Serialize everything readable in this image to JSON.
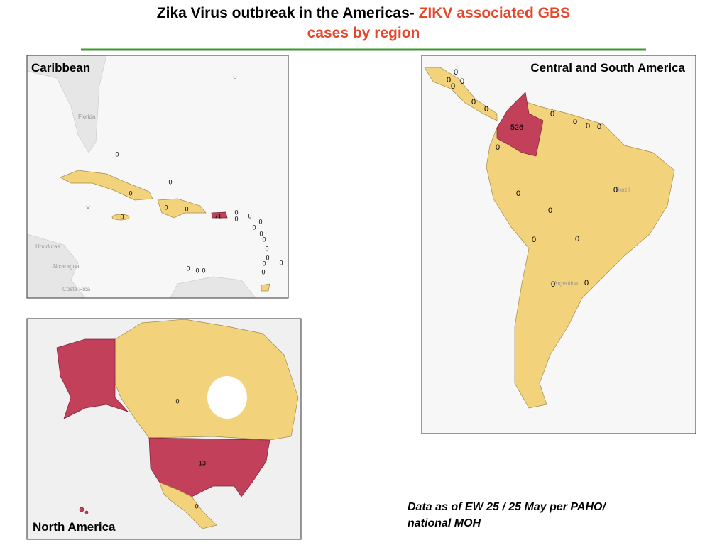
{
  "title": {
    "part1": "Zika Virus outbreak in the Americas-",
    "part2": "ZIKV associated GBS",
    "line2": "cases by region"
  },
  "maps": [
    {
      "name": "Caribbean",
      "basemap_labels": [
        "Florida",
        "Honduras",
        "Nicaragua",
        "Costa Rica"
      ],
      "labels": [
        0,
        0,
        0,
        0,
        0,
        0,
        0,
        0,
        71,
        0,
        0,
        0,
        0,
        0,
        0,
        0,
        0,
        0,
        0,
        0,
        0,
        0,
        0,
        0
      ]
    },
    {
      "name": "Central and South America",
      "basemap_labels": [
        "Brazil",
        "Argentina"
      ],
      "labels": [
        0,
        0,
        0,
        0,
        0,
        0,
        0,
        0,
        0,
        0,
        526,
        0,
        0,
        0,
        0,
        0,
        0,
        0,
        0
      ]
    },
    {
      "name": "North America",
      "basemap_labels": [],
      "labels": [
        0,
        13,
        0
      ]
    }
  ],
  "footnote": [
    "Data as of EW 25 / 25 May per PAHO/",
    "national MOH"
  ]
}
